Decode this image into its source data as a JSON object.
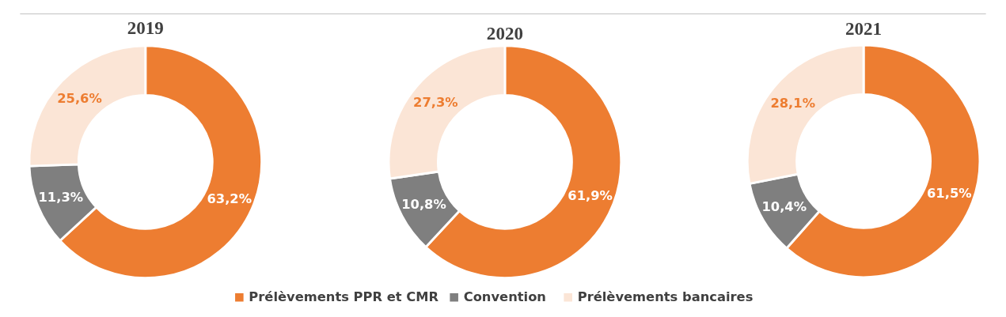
{
  "chart_data": [
    {
      "type": "donut",
      "title": "2019",
      "categories": [
        "Prélèvements PPR et CMR",
        "Convention",
        "Prélèvements bancaires"
      ],
      "values": [
        63.2,
        11.3,
        25.6
      ],
      "value_labels": [
        "63,2%",
        "11,3%",
        "25,6%"
      ],
      "colors": [
        "#ed7d31",
        "#7f7f7f",
        "#fbe5d6"
      ],
      "legend": "bottom"
    },
    {
      "type": "donut",
      "title": "2020",
      "values": [
        61.9,
        10.8,
        27.3
      ],
      "value_labels": [
        "61,9%",
        "10,8%",
        "27,3%"
      ],
      "colors": [
        "#ed7d31",
        "#7f7f7f",
        "#fbe5d6"
      ]
    },
    {
      "type": "donut",
      "title": "2021",
      "values": [
        61.5,
        10.4,
        28.1
      ],
      "value_labels": [
        "61,5%",
        "10,4%",
        "28,1%"
      ],
      "colors": [
        "#ed7d31",
        "#7f7f7f",
        "#fbe5d6"
      ]
    }
  ]
}
